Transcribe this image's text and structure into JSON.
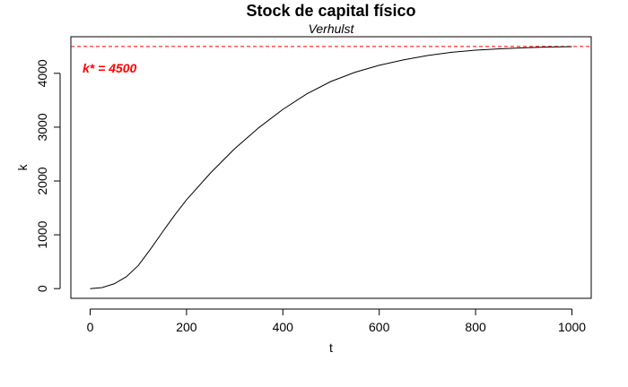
{
  "chart_data": {
    "type": "line",
    "title": "Stock de capital físico",
    "subtitle": "Verhulst",
    "xlabel": "t",
    "ylabel": "k",
    "xlim": [
      -40,
      1040
    ],
    "ylim": [
      -180,
      4680
    ],
    "xticks": [
      0,
      200,
      400,
      600,
      800,
      1000
    ],
    "yticks": [
      0,
      1000,
      2000,
      3000,
      4000
    ],
    "grid": false,
    "series": [
      {
        "color": "#000000",
        "x": [
          0,
          25,
          50,
          75,
          100,
          125,
          150,
          175,
          200,
          250,
          300,
          350,
          400,
          450,
          500,
          550,
          600,
          650,
          700,
          750,
          800,
          850,
          900,
          950,
          1000
        ],
        "y": [
          0,
          20,
          90,
          220,
          430,
          730,
          1050,
          1360,
          1650,
          2150,
          2600,
          2990,
          3330,
          3620,
          3850,
          4020,
          4150,
          4250,
          4330,
          4390,
          4430,
          4455,
          4475,
          4488,
          4495
        ]
      }
    ],
    "reference_line": {
      "value": 4500,
      "color": "#ff0000",
      "style": "dashed"
    },
    "annotation": {
      "text": "k* = 4500",
      "color": "#ff0000"
    }
  }
}
